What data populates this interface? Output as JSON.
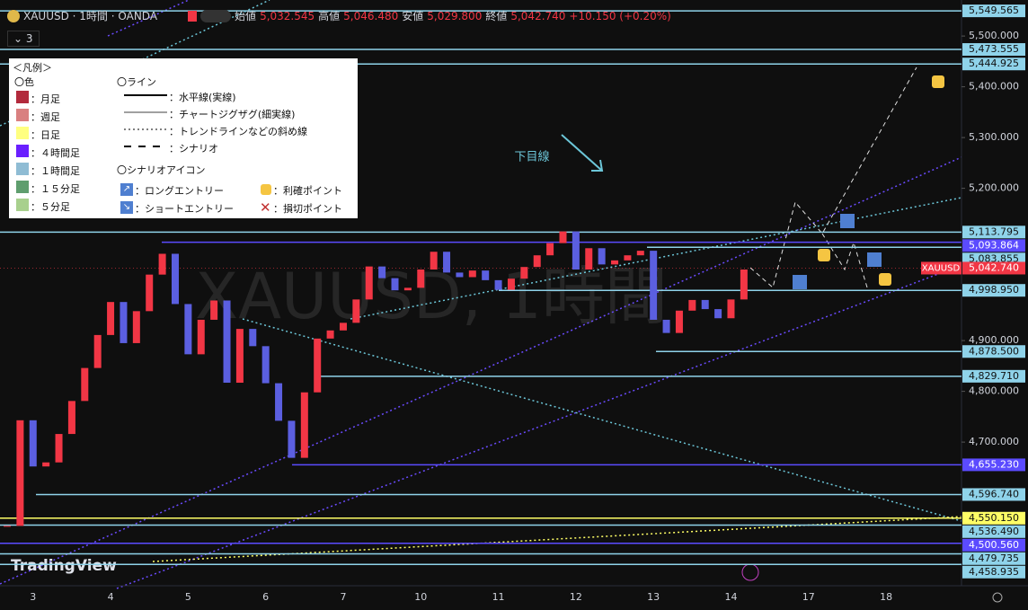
{
  "header": {
    "symbol": "XAUUSD · 1時間 · OANDA",
    "open_label": "始値",
    "open": "5,032.545",
    "high_label": "高値",
    "high": "5,046.480",
    "low_label": "安値",
    "low": "5,029.800",
    "close_label": "終値",
    "close": "5,042.740",
    "change": "+10.150 (+0.20%)",
    "indicator_count": "3"
  },
  "watermark": "XAUUSD, 1時間",
  "branding": "TradingView",
  "legend": {
    "title": "＜凡例＞",
    "colors_heading": "〇色",
    "colors": [
      {
        "color": "#b22a3c",
        "label": "：月足"
      },
      {
        "color": "#d98080",
        "label": "：週足"
      },
      {
        "color": "#ffff80",
        "label": "：日足"
      },
      {
        "color": "#6a1fff",
        "label": "：４時間足"
      },
      {
        "color": "#8fbcd4",
        "label": "：１時間足"
      },
      {
        "color": "#5f9e6e",
        "label": "：１５分足"
      },
      {
        "color": "#a8d08d",
        "label": "：５分足"
      }
    ],
    "lines_heading": "〇ライン",
    "lines": [
      "：水平線(実線)",
      "：チャートジグザグ(細実線)",
      "：トレンドラインなどの斜め線",
      "：シナリオ"
    ],
    "icons_heading": "〇シナリオアイコン",
    "icons": [
      "：ロングエントリー",
      "：利確ポイント",
      "：ショートエントリー",
      "：損切ポイント"
    ]
  },
  "chart_data": {
    "type": "candlestick",
    "annotations": [
      "下目線"
    ],
    "categories": [
      null,
      null,
      "3",
      null,
      null,
      null,
      null,
      null,
      "4",
      null,
      null,
      null,
      null,
      null,
      "5",
      null,
      null,
      null,
      null,
      null,
      "6",
      null,
      null,
      null,
      null,
      null,
      "7",
      null,
      null,
      null,
      null,
      null,
      "10",
      null,
      null,
      null,
      null,
      null,
      "11",
      null,
      null,
      null,
      null,
      null,
      "12",
      null,
      null,
      null,
      null,
      null,
      "13",
      null,
      null,
      null,
      null,
      null,
      "14",
      null,
      null,
      null,
      null,
      null,
      "17",
      null,
      null,
      null,
      null,
      null,
      "18",
      null,
      null,
      null,
      null,
      null
    ],
    "values": [
      4535,
      4743,
      4652,
      4660,
      4716,
      4781,
      4846,
      4911,
      4976,
      4895,
      4958,
      5030,
      5071,
      4972,
      4873,
      4941,
      4979,
      4817,
      4923,
      4889,
      4816,
      4742,
      4669,
      4798,
      4904,
      4920,
      4935,
      4981,
      5046,
      5023,
      4999,
      5004,
      5040,
      5075,
      5034,
      5025,
      5038,
      5019,
      5000,
      5022,
      5045,
      5068,
      5092,
      5115,
      5040,
      5082,
      5050,
      5058,
      5068,
      5077,
      4941,
      4915,
      4959,
      4980,
      4962,
      4944,
      4981,
      5040,
      null,
      null,
      null,
      null,
      null,
      null,
      null,
      null,
      null,
      null,
      null,
      null,
      null,
      null,
      null,
      null
    ],
    "up_color": "#f23645",
    "down_color": "#5b5fe0",
    "ylim": [
      4417,
      5571
    ],
    "yticks": [
      {
        "value": 5500,
        "label": "5,500.000"
      },
      {
        "value": 5400,
        "label": "5,400.000"
      },
      {
        "value": 5300,
        "label": "5,300.000"
      },
      {
        "value": 5200,
        "label": "5,200.000"
      },
      {
        "value": 4900,
        "label": "4,900.000"
      },
      {
        "value": 4800,
        "label": "4,800.000"
      },
      {
        "value": 4700,
        "label": "4,700.000"
      }
    ],
    "levels": [
      {
        "value": 5549.565,
        "label": "5,549.565",
        "color": "#8fd3ea"
      },
      {
        "value": 5473.555,
        "label": "5,473.555",
        "color": "#8fd3ea"
      },
      {
        "value": 5444.925,
        "label": "5,444.925",
        "color": "#8fd3ea"
      },
      {
        "value": 5113.795,
        "label": "5,113.795",
        "color": "#8fd3ea"
      },
      {
        "value": 5093.864,
        "label": "5,093.864",
        "color": "#5b4bff"
      },
      {
        "value": 5083.855,
        "label": "5,083.855",
        "color": "#8fd3ea"
      },
      {
        "value": 4998.95,
        "label": "4,998.950",
        "color": "#8fd3ea"
      },
      {
        "value": 4878.5,
        "label": "4,878.500",
        "color": "#8fd3ea"
      },
      {
        "value": 4829.71,
        "label": "4,829.710",
        "color": "#8fd3ea"
      },
      {
        "value": 4655.23,
        "label": "4,655.230",
        "color": "#5b4bff"
      },
      {
        "value": 4596.74,
        "label": "4,596.740",
        "color": "#8fd3ea"
      },
      {
        "value": 4550.15,
        "label": "4,550.150",
        "color": "#ffff66"
      },
      {
        "value": 4536.49,
        "label": "4,536.490",
        "color": "#8fd3ea"
      },
      {
        "value": 4500.56,
        "label": "4,500.560",
        "color": "#5b4bff"
      },
      {
        "value": 4479.735,
        "label": "4,479.735",
        "color": "#8fd3ea"
      },
      {
        "value": 4458.935,
        "label": "4,458.935",
        "color": "#8fd3ea"
      }
    ],
    "last_price": {
      "name": "XAUUSD",
      "value": 5042.74,
      "label": "5,042.740",
      "color": "#f23645"
    }
  }
}
